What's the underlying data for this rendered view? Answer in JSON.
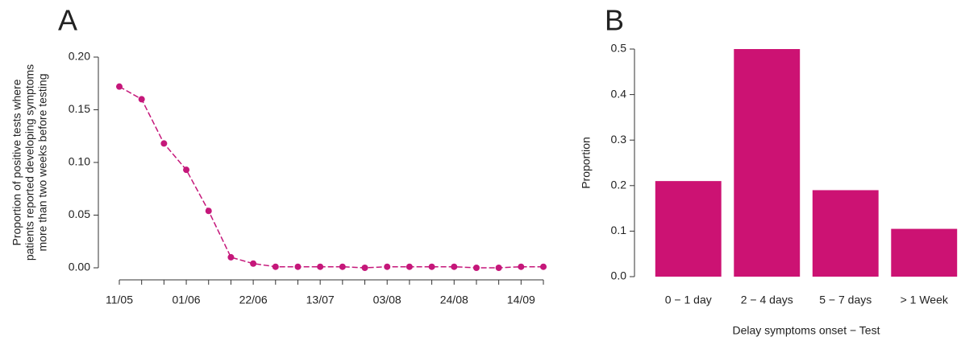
{
  "chart_data": [
    {
      "type": "line",
      "panel": "A",
      "ylabel": [
        "Proportion of positive tests where",
        "patients reported developing symptoms",
        "more than two weeks before testing"
      ],
      "categories": [
        "11/05",
        null,
        null,
        "01/06",
        null,
        null,
        "22/06",
        null,
        null,
        "13/07",
        null,
        null,
        "03/08",
        null,
        null,
        "24/08",
        null,
        null,
        "14/09",
        null
      ],
      "values": [
        0.172,
        0.16,
        0.118,
        0.093,
        0.054,
        0.01,
        0.004,
        0.001,
        0.001,
        0.001,
        0.001,
        0.0,
        0.001,
        0.001,
        0.001,
        0.001,
        0.0,
        0.0,
        0.001,
        0.001
      ],
      "color": "#c5177a",
      "ylim": [
        0,
        0.2
      ],
      "yticks": [
        {
          "value": 0,
          "label": "0.00"
        },
        {
          "value": 0.05,
          "label": "0.05"
        },
        {
          "value": 0.1,
          "label": "0.10"
        },
        {
          "value": 0.15,
          "label": "0.15"
        },
        {
          "value": 0.2,
          "label": "0.20"
        }
      ]
    },
    {
      "type": "bar",
      "panel": "B",
      "xlabel": "Delay symptoms onset − Test",
      "ylabel": "Proportion",
      "categories": [
        "0 − 1 day",
        "2 − 4 days",
        "5 − 7 days",
        "> 1 Week"
      ],
      "values": [
        0.21,
        0.5,
        0.19,
        0.105
      ],
      "color": "#cc1273",
      "ylim": [
        0,
        0.5
      ],
      "yticks": [
        {
          "value": 0,
          "label": "0.0"
        },
        0.1,
        0.2,
        0.3,
        0.4,
        0.5
      ]
    }
  ]
}
